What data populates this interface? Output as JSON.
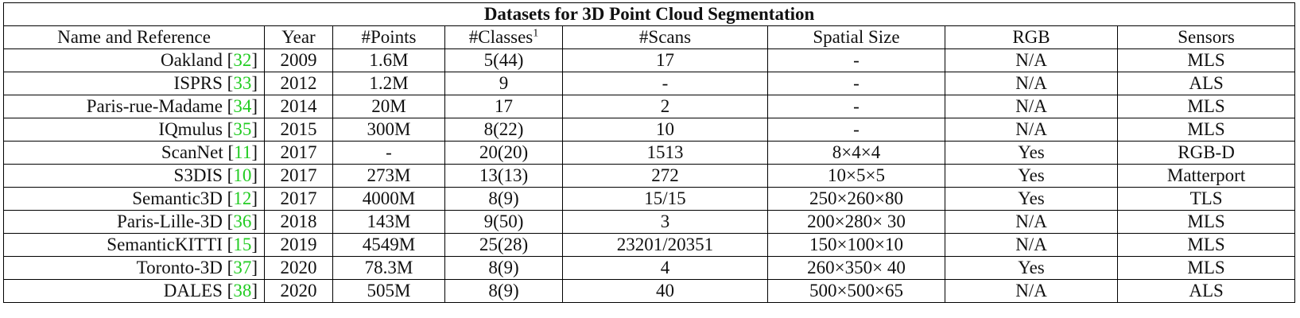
{
  "title": "Datasets for 3D Point Cloud Segmentation",
  "headers": {
    "name": "Name and Reference",
    "year": "Year",
    "points": "#Points",
    "classes": "#Classes",
    "classes_sup": "1",
    "scans": "#Scans",
    "spatial": "Spatial Size",
    "rgb": "RGB",
    "sensors": "Sensors"
  },
  "rows": [
    {
      "name": "Oakland",
      "ref": "32",
      "year": "2009",
      "points": "1.6M",
      "classes": "5(44)",
      "scans": "17",
      "spatial": "-",
      "rgb": "N/A",
      "sensors": "MLS"
    },
    {
      "name": "ISPRS",
      "ref": "33",
      "year": "2012",
      "points": "1.2M",
      "classes": "9",
      "scans": "-",
      "spatial": "-",
      "rgb": "N/A",
      "sensors": "ALS"
    },
    {
      "name": "Paris-rue-Madame",
      "ref": "34",
      "year": "2014",
      "points": "20M",
      "classes": "17",
      "scans": "2",
      "spatial": "-",
      "rgb": "N/A",
      "sensors": "MLS"
    },
    {
      "name": "IQmulus",
      "ref": "35",
      "year": "2015",
      "points": "300M",
      "classes": "8(22)",
      "scans": "10",
      "spatial": "-",
      "rgb": "N/A",
      "sensors": "MLS"
    },
    {
      "name": "ScanNet",
      "ref": "11",
      "year": "2017",
      "points": "-",
      "classes": "20(20)",
      "scans": "1513",
      "spatial": "8×4×4",
      "rgb": "Yes",
      "sensors": "RGB-D"
    },
    {
      "name": "S3DIS",
      "ref": "10",
      "year": "2017",
      "points": "273M",
      "classes": "13(13)",
      "scans": "272",
      "spatial": "10×5×5",
      "rgb": "Yes",
      "sensors": "Matterport"
    },
    {
      "name": "Semantic3D",
      "ref": "12",
      "year": "2017",
      "points": "4000M",
      "classes": "8(9)",
      "scans": "15/15",
      "spatial": "250×260×80",
      "rgb": "Yes",
      "sensors": "TLS"
    },
    {
      "name": "Paris-Lille-3D",
      "ref": "36",
      "year": "2018",
      "points": "143M",
      "classes": "9(50)",
      "scans": "3",
      "spatial": "200×280× 30",
      "rgb": "N/A",
      "sensors": "MLS"
    },
    {
      "name": "SemanticKITTI",
      "ref": "15",
      "year": "2019",
      "points": "4549M",
      "classes": "25(28)",
      "scans": "23201/20351",
      "spatial": "150×100×10",
      "rgb": "N/A",
      "sensors": "MLS"
    },
    {
      "name": "Toronto-3D",
      "ref": "37",
      "year": "2020",
      "points": "78.3M",
      "classes": "8(9)",
      "scans": "4",
      "spatial": "260×350× 40",
      "rgb": "Yes",
      "sensors": "MLS"
    },
    {
      "name": "DALES",
      "ref": "38",
      "year": "2020",
      "points": "505M",
      "classes": "8(9)",
      "scans": "40",
      "spatial": "500×500×65",
      "rgb": "N/A",
      "sensors": "ALS"
    }
  ]
}
